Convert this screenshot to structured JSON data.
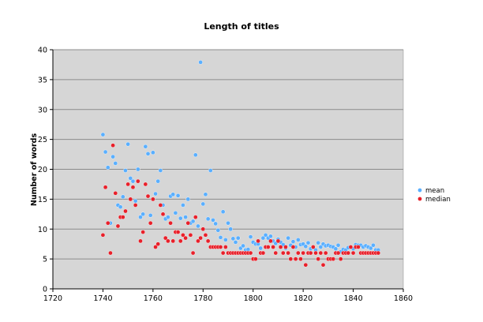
{
  "chart_data": {
    "type": "scatter",
    "title": "Length of titles",
    "xlabel": "",
    "ylabel": "Number of words",
    "xlim": [
      1720,
      1860
    ],
    "ylim": [
      0,
      40
    ],
    "xticks": [
      1720,
      1740,
      1760,
      1780,
      1800,
      1820,
      1840,
      1860
    ],
    "yticks": [
      0,
      5,
      10,
      15,
      20,
      25,
      30,
      35,
      40
    ],
    "grid": "horizontal",
    "legend": "right",
    "x_start": 1740,
    "series": [
      {
        "name": "mean",
        "color": "#5aafff",
        "values": [
          25.8,
          22.9,
          20.3,
          11,
          22.1,
          21,
          14,
          13.7,
          15.4,
          19.8,
          24.2,
          18.5,
          18,
          14.7,
          20,
          12,
          12.5,
          23.8,
          22.6,
          12.3,
          22.8,
          15.9,
          18,
          19.8,
          14,
          11.7,
          12,
          15.5,
          15.8,
          12.7,
          15.6,
          11.8,
          14,
          12,
          15,
          11,
          11.3,
          22.4,
          10.5,
          37.9,
          14.2,
          15.8,
          11.7,
          19.8,
          11.5,
          10.9,
          9.8,
          8.6,
          12.9,
          8.2,
          11,
          10,
          8.4,
          7.8,
          8.5,
          6.8,
          7.2,
          6.5,
          6.6,
          8.7,
          7.8,
          7.5,
          7.5,
          6.8,
          8.5,
          9,
          8.5,
          8.8,
          8,
          7.6,
          8.3,
          7.8,
          7.4,
          6.8,
          8.5,
          7.3,
          7.9,
          7,
          8.2,
          7.4,
          7.5,
          7.1,
          7.7,
          6.7,
          6.9,
          6.5,
          7.7,
          7,
          7.5,
          7.2,
          7.3,
          7.1,
          7,
          6.7,
          7.3,
          6.2,
          6.6,
          6.5,
          6.9,
          7,
          6.7,
          7.4,
          7.3,
          7.3,
          7,
          7.2,
          7,
          6.8,
          7.3,
          6.5,
          6.5
        ]
      },
      {
        "name": "median",
        "color": "#e8202a",
        "values": [
          9,
          17,
          11,
          6,
          24,
          16,
          10.5,
          12,
          12,
          13,
          17.5,
          15,
          17,
          14,
          18,
          8,
          9.5,
          17.5,
          15.5,
          11,
          15,
          7,
          7.5,
          14,
          12.5,
          8.5,
          8,
          11,
          8,
          9.5,
          9.5,
          8,
          9,
          8.5,
          11,
          9,
          6,
          12,
          8,
          8.5,
          10,
          9,
          8,
          7,
          7,
          7,
          7,
          7,
          6,
          7,
          6,
          6,
          6,
          6,
          6,
          6,
          6,
          6,
          6,
          6,
          5,
          5,
          8,
          6,
          6,
          7,
          7,
          8,
          7,
          6,
          8,
          7,
          6,
          7,
          6,
          5,
          7,
          5,
          6,
          5,
          6,
          4,
          6,
          6,
          7,
          6,
          5,
          6,
          4,
          6,
          5,
          5,
          5,
          6,
          6,
          5,
          6,
          6,
          6,
          7,
          6,
          7,
          7,
          6,
          6,
          6,
          6,
          6,
          6,
          6,
          6
        ]
      }
    ]
  }
}
